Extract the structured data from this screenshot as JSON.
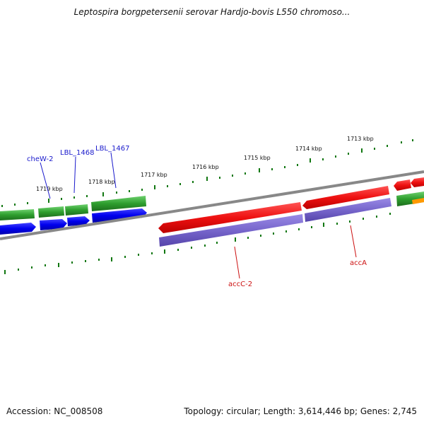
{
  "title": "Leptospira borgpetersenii serovar Hardjo-bovis L550 chromoso...",
  "footer": {
    "accession": "Accession: NC_008508",
    "summary": "Topology: circular; Length: 3,614,446 bp; Genes: 2,745"
  },
  "scale_labels": [
    "1713 kbp",
    "1714 kbp",
    "1715 kbp",
    "1716 kbp",
    "1717 kbp",
    "1718 kbp",
    "1719 kbp"
  ],
  "gene_labels": {
    "blue": [
      "cheW-2",
      "LBL_1468",
      "LBL_1467"
    ],
    "red": [
      "accC-2",
      "accA"
    ]
  },
  "colors": {
    "forward_cds": "#ee1111",
    "reverse_cds": "#1111ee",
    "forward_rna_protein": "#2e9e2e",
    "gc_skew": "#7766cc",
    "backbone": "#888888",
    "tick": "#117711",
    "blue_label": "#1a1acc",
    "red_label": "#cc1111",
    "orange": "#ff9900"
  }
}
